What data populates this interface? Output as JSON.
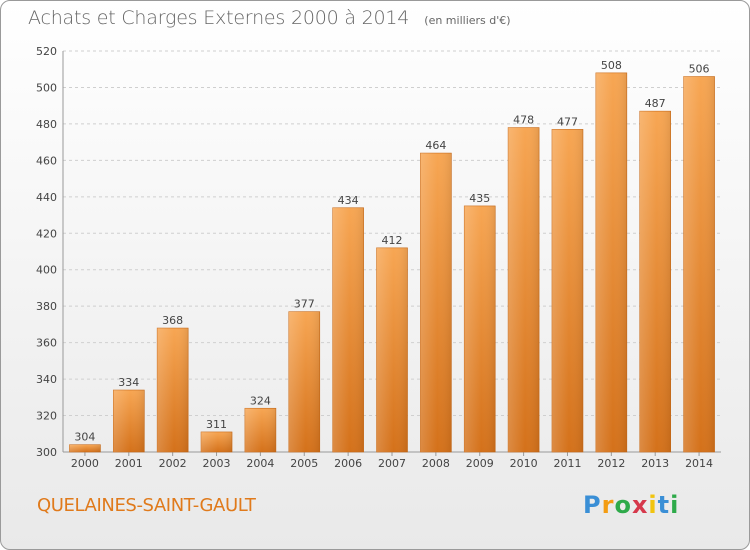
{
  "header": {
    "title": "Achats et Charges Externes 2000 à 2014",
    "unit": "(en milliers d'€)"
  },
  "footer": {
    "commune": "QUELAINES-SAINT-GAULT",
    "logo_parts": [
      "P",
      "r",
      "o",
      "x",
      "i",
      "t",
      "i"
    ]
  },
  "colors": {
    "bar_light": "#f7a653",
    "bar_dark": "#d4711a",
    "grid": "#cfcfcf",
    "axis_text": "#444444",
    "commune_text": "#e07a1b"
  },
  "chart_data": {
    "type": "bar",
    "title": "Achats et Charges Externes 2000 à 2014",
    "subtitle": "(en milliers d'€)",
    "xlabel": "",
    "ylabel": "",
    "categories": [
      "2000",
      "2001",
      "2002",
      "2003",
      "2004",
      "2005",
      "2006",
      "2007",
      "2008",
      "2009",
      "2010",
      "2011",
      "2012",
      "2013",
      "2014"
    ],
    "values": [
      304,
      334,
      368,
      311,
      324,
      377,
      434,
      412,
      464,
      435,
      478,
      477,
      508,
      487,
      506
    ],
    "ylim": [
      300,
      520
    ],
    "yticks": [
      300,
      320,
      340,
      360,
      380,
      400,
      420,
      440,
      460,
      480,
      500,
      520
    ],
    "grid": true,
    "data_labels": true
  }
}
